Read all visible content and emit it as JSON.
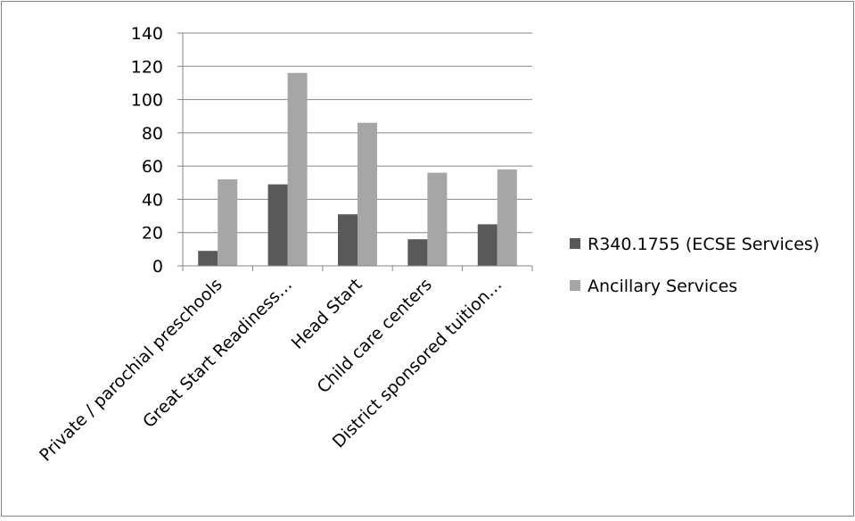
{
  "chart_data": {
    "type": "bar",
    "categories": [
      "Private / parochial preschools",
      "Great Start Readiness…",
      "Head Start",
      "Child care centers",
      "District sponsored tuition…"
    ],
    "series": [
      {
        "name": "R340.1755 (ECSE Services)",
        "color": "#595959",
        "values": [
          9,
          49,
          31,
          16,
          25
        ]
      },
      {
        "name": "Ancillary Services",
        "color": "#a6a6a6",
        "values": [
          52,
          116,
          86,
          56,
          58
        ]
      }
    ],
    "yticks": [
      "0",
      "20",
      "40",
      "60",
      "80",
      "100",
      "120",
      "140"
    ],
    "ylim": [
      0,
      140
    ],
    "grid": true,
    "legend_position": "right"
  }
}
